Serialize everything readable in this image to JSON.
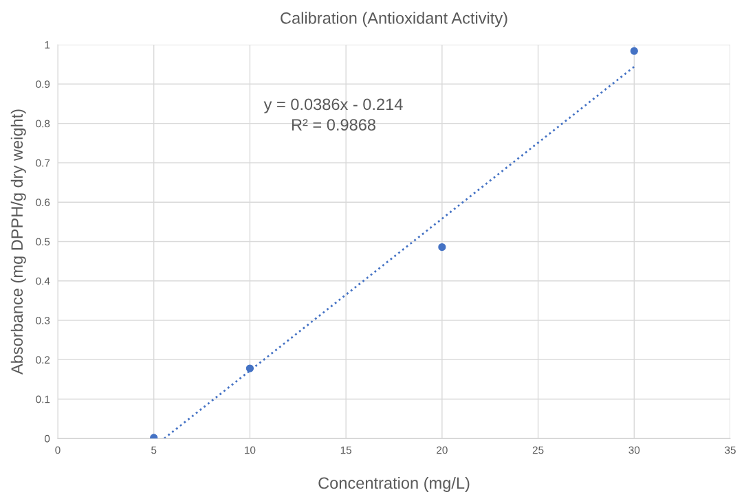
{
  "chart_data": {
    "type": "scatter",
    "title": "Calibration (Antioxidant Activity)",
    "xlabel": "Concentration (mg/L)",
    "ylabel": "Absorbance (mg DPPH/g dry weight)",
    "series": [
      {
        "color": "#4472c4",
        "x": [
          5,
          10,
          20,
          30
        ],
        "values": [
          0.002,
          0.178,
          0.486,
          0.984
        ],
        "marker": "circle"
      },
      {
        "type": "line",
        "color": "#4472c4",
        "x": [
          5.54,
          30
        ],
        "values": [
          0,
          0.944
        ],
        "line_style": "dotted",
        "marker": "none"
      }
    ],
    "annotations": [
      "y = 0.0386x - 0.214",
      "R² = 0.9868"
    ],
    "xlim": [
      0,
      35
    ],
    "xticks": [
      0,
      5,
      10,
      15,
      20,
      25,
      30,
      35
    ],
    "ylim": [
      0,
      1
    ],
    "yticks": [
      0,
      0.1,
      0.2,
      0.3,
      0.4,
      0.5,
      0.6,
      0.7,
      0.8,
      0.9,
      1
    ],
    "grid": true,
    "legend": false
  }
}
